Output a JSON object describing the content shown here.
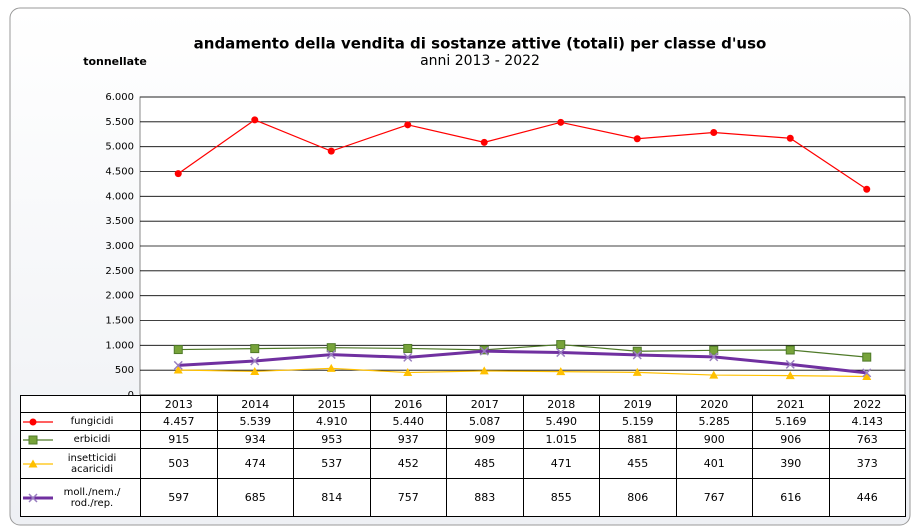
{
  "chart_data": {
    "type": "line",
    "title": "andamento della vendita di sostanze attive (totali) per classe d'uso",
    "subtitle": "anni 2013 - 2022",
    "y_label": "tonnellate",
    "categories": [
      "2013",
      "2014",
      "2015",
      "2016",
      "2017",
      "2018",
      "2019",
      "2020",
      "2021",
      "2022"
    ],
    "series": [
      {
        "name": "fungicidi",
        "color": "#ff0000",
        "marker": "circle",
        "values": [
          4457,
          5539,
          4910,
          5440,
          5087,
          5490,
          5159,
          5285,
          5169,
          4143
        ],
        "value_labels": [
          "4.457",
          "5.539",
          "4.910",
          "5.440",
          "5.087",
          "5.490",
          "5.159",
          "5.285",
          "5.169",
          "4.143"
        ]
      },
      {
        "name": "erbicidi",
        "color": "#4f7a28",
        "marker": "square",
        "values": [
          915,
          934,
          953,
          937,
          909,
          1015,
          881,
          900,
          906,
          763
        ],
        "value_labels": [
          "915",
          "934",
          "953",
          "937",
          "909",
          "1.015",
          "881",
          "900",
          "906",
          "763"
        ]
      },
      {
        "name": "insetticidi acaricidi",
        "color": "#ffc000",
        "marker": "triangle",
        "values": [
          503,
          474,
          537,
          452,
          485,
          471,
          455,
          401,
          390,
          373
        ],
        "value_labels": [
          "503",
          "474",
          "537",
          "452",
          "485",
          "471",
          "455",
          "401",
          "390",
          "373"
        ]
      },
      {
        "name": "moll./nem./ rod./rep.",
        "color": "#7030a0",
        "marker": "x",
        "values": [
          597,
          685,
          814,
          757,
          883,
          855,
          806,
          767,
          616,
          446
        ],
        "value_labels": [
          "597",
          "685",
          "814",
          "757",
          "883",
          "855",
          "806",
          "767",
          "616",
          "446"
        ]
      }
    ],
    "ylim": [
      0,
      6000
    ],
    "yticks": [
      0,
      {
        "value": 500,
        "label": "500"
      },
      {
        "value": 1000,
        "label": "1.000"
      },
      {
        "value": 1500,
        "label": "1.500"
      },
      {
        "value": 2000,
        "label": "2.000"
      },
      {
        "value": 2500,
        "label": "2.500"
      },
      {
        "value": 3000,
        "label": "3.000"
      },
      {
        "value": 3500,
        "label": "3.500"
      },
      {
        "value": 4000,
        "label": "4.000"
      },
      {
        "value": 4500,
        "label": "4.500"
      },
      {
        "value": 5000,
        "label": "5.000"
      },
      {
        "value": 5500,
        "label": "5.500"
      },
      {
        "value": 6000,
        "label": "6.000"
      }
    ],
    "grid": true
  }
}
